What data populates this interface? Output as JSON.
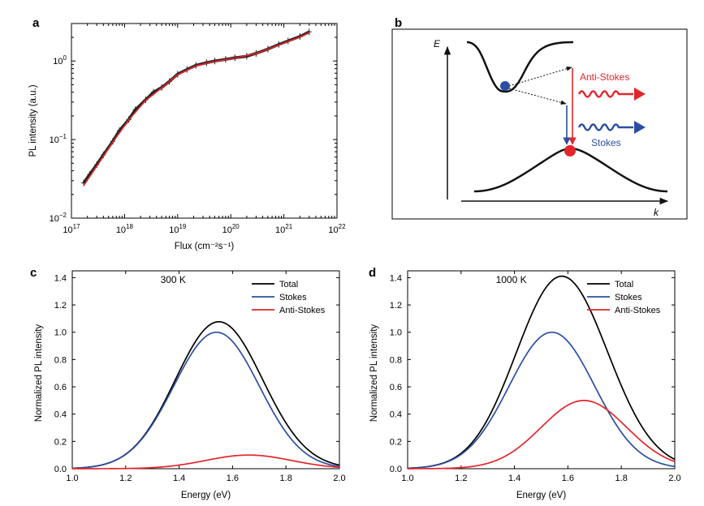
{
  "panels": {
    "a": "a",
    "b": "b",
    "c": "c",
    "d": "d"
  },
  "chart_data": [
    {
      "panel": "a",
      "type": "scatter",
      "title": "",
      "xlabel": "Flux (cm⁻²s⁻¹)",
      "ylabel": "PL intensity (a.u.)",
      "xscale": "log",
      "yscale": "log",
      "xlim": [
        1e+17,
        1e+22
      ],
      "ylim": [
        0.01,
        3
      ],
      "grid": false,
      "xticks": [
        {
          "base": "10",
          "exp": "17",
          "value": 1e+17
        },
        {
          "base": "10",
          "exp": "18",
          "value": 1e+18
        },
        {
          "base": "10",
          "exp": "19",
          "value": 1e+19
        },
        {
          "base": "10",
          "exp": "20",
          "value": 1e+20
        },
        {
          "base": "10",
          "exp": "21",
          "value": 1e+21
        },
        {
          "base": "10",
          "exp": "22",
          "value": 1e+22
        }
      ],
      "yticks": [
        {
          "base": "10",
          "exp": "−2",
          "value": 0.01
        },
        {
          "base": "10",
          "exp": "−1",
          "value": 0.1
        },
        {
          "base": "10",
          "exp": "0",
          "value": 1
        }
      ],
      "series": [
        {
          "kind": "data",
          "color": "#222222",
          "x": [
            1.7e+17,
            2.2e+17,
            3e+17,
            4e+17,
            6e+17,
            8e+17,
            1.2e+18,
            1.6e+18,
            2.5e+18,
            3.5e+18,
            5e+18,
            7e+18,
            1e+19,
            1.5e+19,
            2.2e+19,
            3.5e+19,
            5e+19,
            8e+19,
            1.2e+20,
            2e+20,
            3e+20,
            5e+20,
            8e+20,
            1.2e+21,
            2e+21,
            3e+21
          ],
          "y": [
            0.028,
            0.036,
            0.048,
            0.064,
            0.095,
            0.13,
            0.18,
            0.24,
            0.32,
            0.4,
            0.46,
            0.55,
            0.68,
            0.78,
            0.88,
            0.95,
            1.0,
            1.05,
            1.1,
            1.15,
            1.25,
            1.42,
            1.62,
            1.8,
            2.05,
            2.35
          ]
        },
        {
          "kind": "fit",
          "color": "#e8242a",
          "x": [
            1.7e+17,
            3e+17,
            6e+17,
            1.2e+18,
            2.5e+18,
            5e+18,
            1e+19,
            2.2e+19,
            5e+19,
            1.2e+20,
            3e+20,
            8e+20,
            2e+21,
            3e+21
          ],
          "y": [
            0.026,
            0.046,
            0.093,
            0.178,
            0.315,
            0.455,
            0.67,
            0.87,
            0.99,
            1.09,
            1.24,
            1.6,
            2.02,
            2.3
          ]
        }
      ]
    },
    {
      "panel": "c",
      "type": "line",
      "title": "",
      "annotation": "300 K",
      "xlabel": "Energy (eV)",
      "ylabel": "Normalized PL intensity",
      "xlim": [
        1.0,
        2.0
      ],
      "ylim": [
        0,
        1.45
      ],
      "xticks": [
        "1.0",
        "1.2",
        "1.4",
        "1.6",
        "1.8",
        "2.0"
      ],
      "yticks": [
        "0.0",
        "0.2",
        "0.4",
        "0.6",
        "0.8",
        "1.0",
        "1.2",
        "1.4"
      ],
      "legend": "top-right",
      "series": [
        {
          "name": "Total",
          "color": "#000000",
          "peaks": [
            {
              "center": 1.54,
              "amplitude": 1.0,
              "width": 0.16
            },
            {
              "center": 1.66,
              "amplitude": 0.1,
              "width": 0.16
            }
          ]
        },
        {
          "name": "Stokes",
          "color": "#2b4ea2",
          "peaks": [
            {
              "center": 1.54,
              "amplitude": 1.0,
              "width": 0.16
            }
          ]
        },
        {
          "name": "Anti-Stokes",
          "color": "#e3262c",
          "peaks": [
            {
              "center": 1.66,
              "amplitude": 0.1,
              "width": 0.16
            }
          ]
        }
      ]
    },
    {
      "panel": "d",
      "type": "line",
      "title": "",
      "annotation": "1000 K",
      "xlabel": "Energy (eV)",
      "ylabel": "Normalized PL intensity",
      "xlim": [
        1.0,
        2.0
      ],
      "ylim": [
        0,
        1.45
      ],
      "xticks": [
        "1.0",
        "1.2",
        "1.4",
        "1.6",
        "1.8",
        "2.0"
      ],
      "yticks": [
        "0.0",
        "0.2",
        "0.4",
        "0.6",
        "0.8",
        "1.0",
        "1.2",
        "1.4"
      ],
      "legend": "top-right",
      "series": [
        {
          "name": "Total",
          "color": "#000000",
          "peaks": [
            {
              "center": 1.54,
              "amplitude": 1.0,
              "width": 0.16
            },
            {
              "center": 1.66,
              "amplitude": 0.5,
              "width": 0.16
            }
          ]
        },
        {
          "name": "Stokes",
          "color": "#2b4ea2",
          "peaks": [
            {
              "center": 1.54,
              "amplitude": 1.0,
              "width": 0.16
            }
          ]
        },
        {
          "name": "Anti-Stokes",
          "color": "#e3262c",
          "peaks": [
            {
              "center": 1.66,
              "amplitude": 0.5,
              "width": 0.16
            }
          ]
        }
      ]
    }
  ],
  "diagram_b": {
    "energy_axis_label": "E",
    "momentum_axis_label": "k",
    "anti_stokes_label": "Anti-Stokes",
    "stokes_label": "Stokes",
    "colors": {
      "anti_stokes": "#e3262c",
      "stokes": "#2b4ea2",
      "lines": "#111111"
    }
  }
}
